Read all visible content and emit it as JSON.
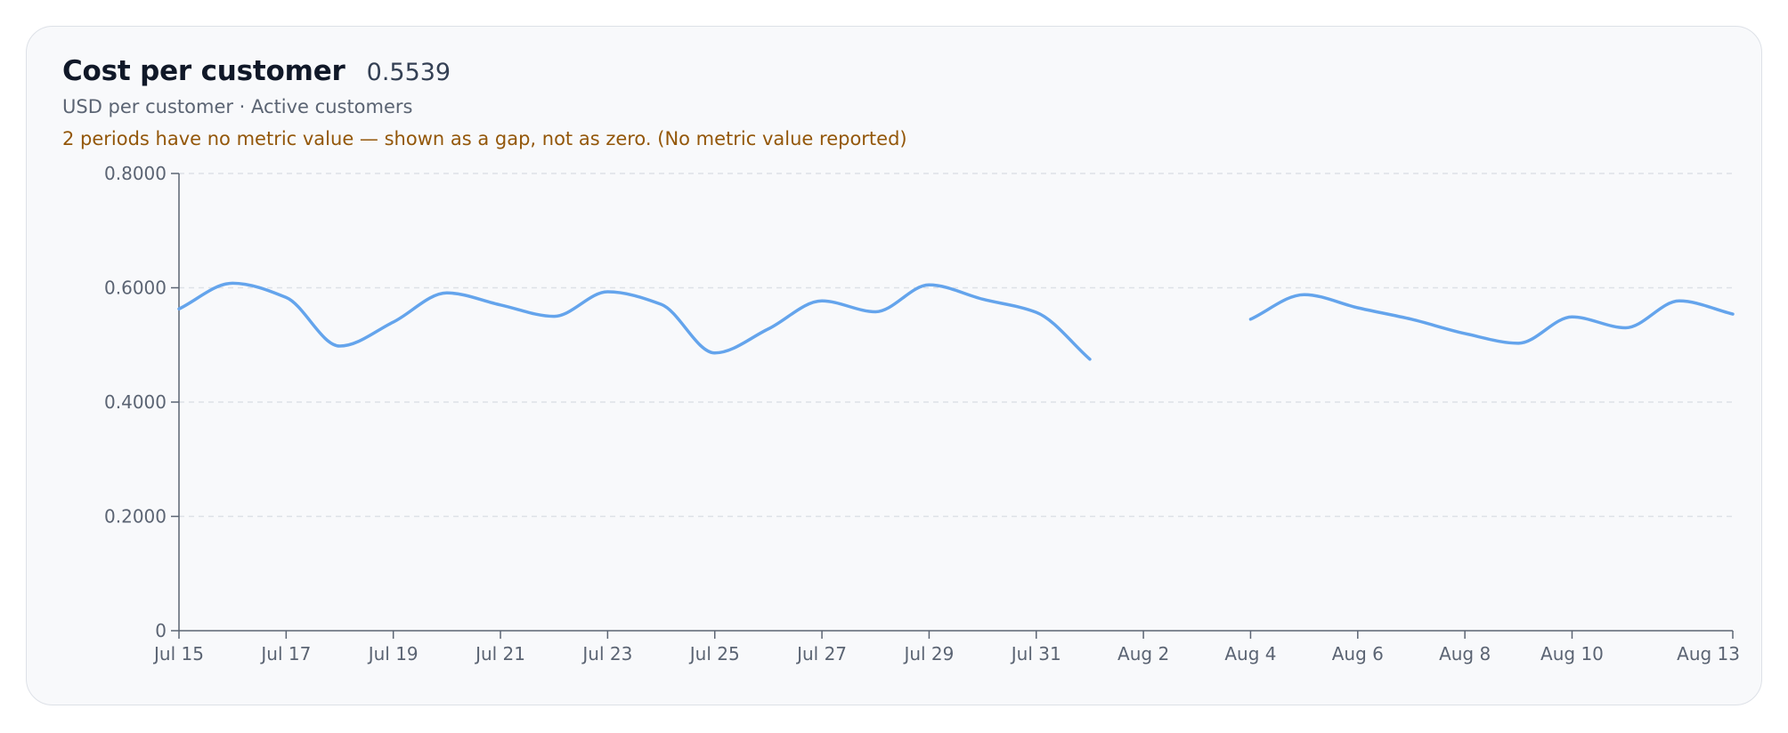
{
  "card": {
    "title": "Cost per customer",
    "current_value": "0.5539",
    "subtitle": "USD per customer · Active customers",
    "notice": "2 periods have no metric value — shown as a gap, not as zero. (No metric value reported)"
  },
  "colors": {
    "line": "#64a4ec",
    "notice": "#93570a",
    "axis": "#5b6473",
    "grid": "#dde1e7"
  },
  "chart_data": {
    "type": "line",
    "y_ticks": [
      "0",
      "0.2000",
      "0.4000",
      "0.6000",
      "0.8000"
    ],
    "ylim": [
      0,
      0.8
    ],
    "grid": "horizontal dashed",
    "x_tick_labels": [
      "Jul 15",
      "Jul 17",
      "Jul 19",
      "Jul 21",
      "Jul 23",
      "Jul 25",
      "Jul 27",
      "Jul 29",
      "Jul 31",
      "Aug 2",
      "Aug 4",
      "Aug 6",
      "Aug 8",
      "Aug 10",
      "Aug 13"
    ],
    "x": [
      "Jul 15",
      "Jul 16",
      "Jul 17",
      "Jul 18",
      "Jul 19",
      "Jul 20",
      "Jul 21",
      "Jul 22",
      "Jul 23",
      "Jul 24",
      "Jul 25",
      "Jul 26",
      "Jul 27",
      "Jul 28",
      "Jul 29",
      "Jul 30",
      "Jul 31",
      "Aug 1",
      "Aug 2",
      "Aug 3",
      "Aug 4",
      "Aug 5",
      "Aug 6",
      "Aug 7",
      "Aug 8",
      "Aug 9",
      "Aug 10",
      "Aug 11",
      "Aug 12",
      "Aug 13"
    ],
    "series": [
      {
        "values": [
          0.563,
          0.608,
          0.583,
          0.498,
          0.54,
          0.591,
          0.57,
          0.55,
          0.593,
          0.571,
          0.486,
          0.528,
          0.577,
          0.558,
          0.605,
          0.58,
          0.557,
          0.475,
          null,
          null,
          0.545,
          0.588,
          0.565,
          0.545,
          0.52,
          0.503,
          0.549,
          0.53,
          0.577,
          0.554
        ]
      }
    ]
  }
}
